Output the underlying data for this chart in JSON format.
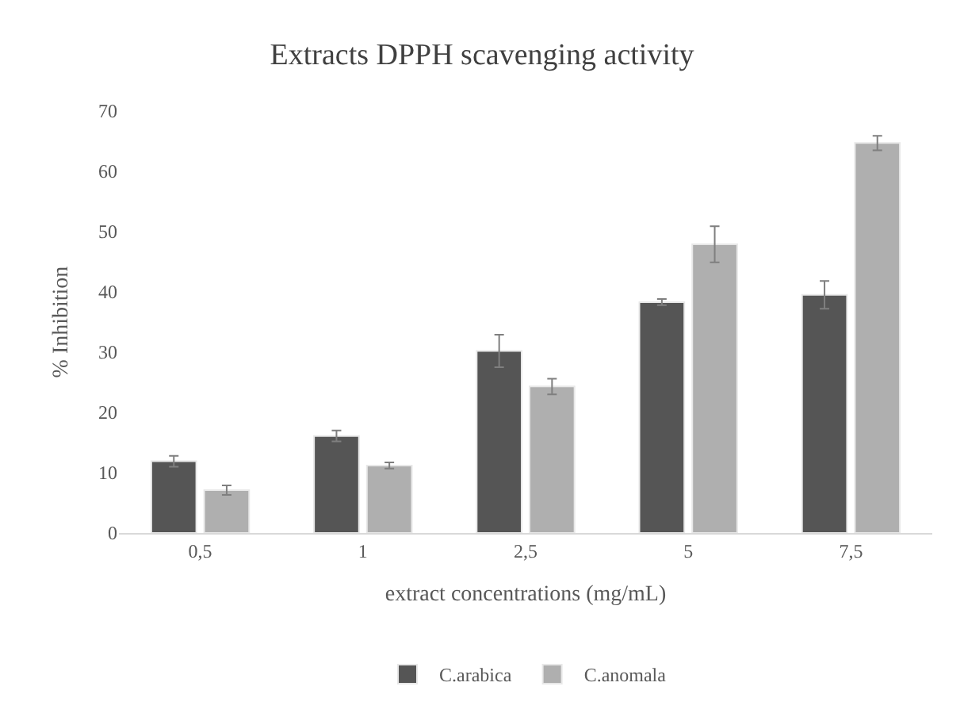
{
  "chart_data": {
    "type": "bar",
    "title": "Extracts DPPH scavenging activity",
    "xlabel": "extract concentrations (mg/mL)",
    "ylabel": "% Inhibition",
    "categories": [
      "0,5",
      "1",
      "2,5",
      "5",
      "7,5"
    ],
    "series": [
      {
        "name": "C.arabica",
        "color": "#555555",
        "values": [
          11.9,
          16.1,
          30.2,
          38.3,
          39.5
        ],
        "errors": [
          0.9,
          0.9,
          2.7,
          0.5,
          2.3
        ]
      },
      {
        "name": "C.anomala",
        "color": "#afafaf",
        "values": [
          7.1,
          11.2,
          24.3,
          47.9,
          64.7
        ],
        "errors": [
          0.8,
          0.5,
          1.3,
          3.0,
          1.2
        ]
      }
    ],
    "ylim": [
      0,
      70
    ],
    "yticks": [
      0,
      10,
      20,
      30,
      40,
      50,
      60,
      70
    ],
    "legend": "bottom"
  }
}
